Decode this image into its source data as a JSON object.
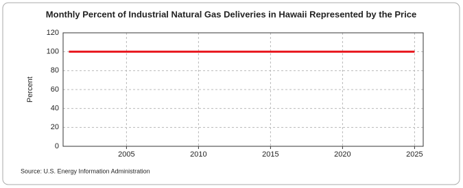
{
  "chart_data": {
    "type": "line",
    "title": "Monthly Percent of Industrial Natural Gas Deliveries in Hawaii Represented by the Price",
    "y_label": "Percent",
    "source": "Source: U.S. Energy Information Administration",
    "x": [
      2001,
      2002,
      2003,
      2004,
      2005,
      2006,
      2007,
      2008,
      2009,
      2010,
      2011,
      2012,
      2013,
      2014,
      2015,
      2016,
      2017,
      2018,
      2019,
      2020,
      2021,
      2022,
      2023,
      2024,
      2025
    ],
    "values": [
      100,
      100,
      100,
      100,
      100,
      100,
      100,
      100,
      100,
      100,
      100,
      100,
      100,
      100,
      100,
      100,
      100,
      100,
      100,
      100,
      100,
      100,
      100,
      100,
      100
    ],
    "color": "#e8141b",
    "xlim": [
      2000.6,
      2025.6
    ],
    "xticks": [
      2005,
      2010,
      2015,
      2020,
      2025
    ],
    "ylim": [
      0,
      120
    ],
    "yticks": [
      0,
      20,
      40,
      60,
      80,
      100,
      120
    ],
    "grid": true
  }
}
